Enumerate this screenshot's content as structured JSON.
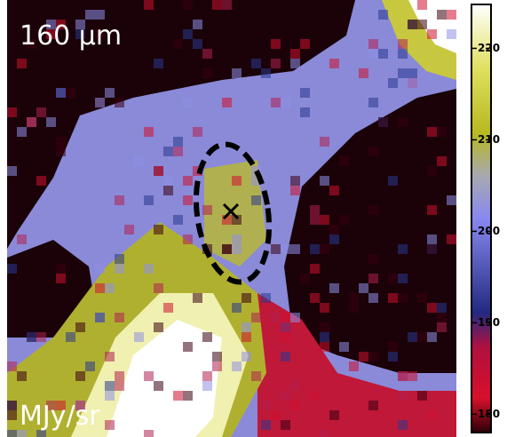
{
  "chart_data": {
    "type": "colormap",
    "panel_label": "160 μm",
    "unit_label": "MJy/sr",
    "colorbar": {
      "lim": [
        178,
        224.8
      ],
      "ticks": [
        180,
        190,
        200,
        210,
        220
      ]
    }
  }
}
